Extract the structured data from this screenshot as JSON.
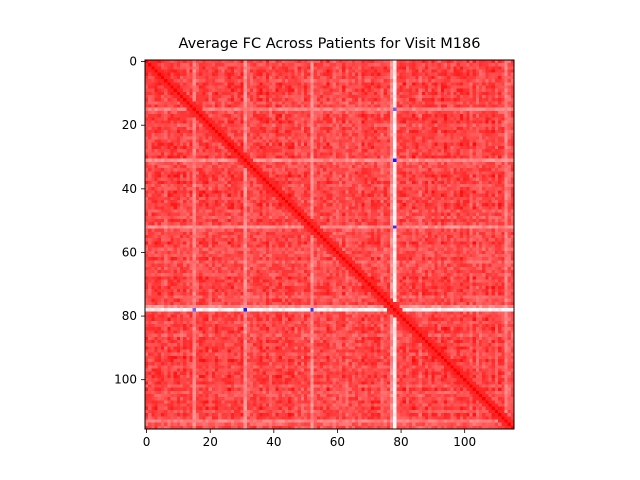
{
  "chart_data": {
    "type": "heatmap",
    "title": "Average FC Across Patients for Visit M186",
    "xlabel": "",
    "ylabel": "",
    "matrix_size": 116,
    "colormap": "bwr",
    "value_range": [
      -1,
      1
    ],
    "diagonal_value": 1.0,
    "base_value": 0.75,
    "weak_regions": [
      {
        "index": 78,
        "value": 0.05
      },
      {
        "index": 77,
        "value": 0.45
      },
      {
        "index": 31,
        "value": 0.45
      },
      {
        "index": 52,
        "value": 0.45
      },
      {
        "index": 15,
        "value": 0.5
      },
      {
        "index": 113,
        "value": 0.5
      }
    ],
    "negative_cells": [
      {
        "row": 15,
        "col": 78,
        "value": -0.6
      },
      {
        "row": 31,
        "col": 78,
        "value": -0.9
      },
      {
        "row": 52,
        "col": 78,
        "value": -0.8
      },
      {
        "row": 78,
        "col": 31,
        "value": -0.9
      },
      {
        "row": 78,
        "col": 52,
        "value": -0.8
      },
      {
        "row": 78,
        "col": 15,
        "value": -0.6
      }
    ],
    "xticks": [
      0,
      20,
      40,
      60,
      80,
      100
    ],
    "yticks": [
      0,
      20,
      40,
      60,
      80,
      100
    ],
    "xtick_labels": [
      "0",
      "20",
      "40",
      "60",
      "80",
      "100"
    ],
    "ytick_labels": [
      "0",
      "20",
      "40",
      "60",
      "80",
      "100"
    ],
    "xlim": [
      -0.5,
      115.5
    ],
    "ylim": [
      115.5,
      -0.5
    ],
    "grid": false
  }
}
